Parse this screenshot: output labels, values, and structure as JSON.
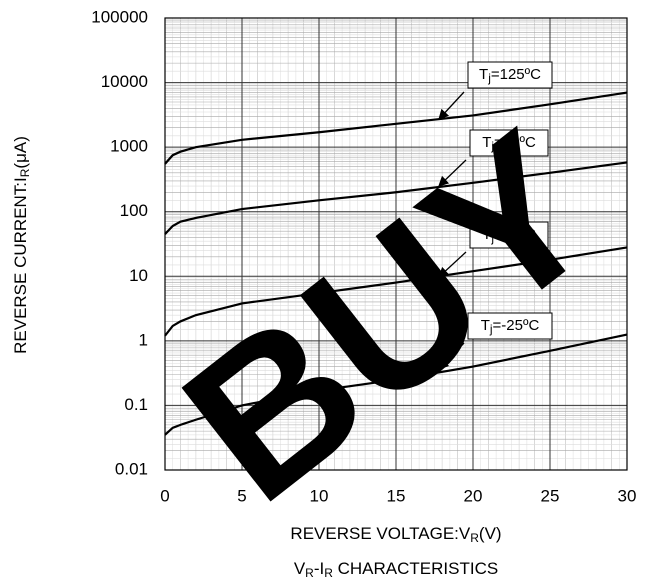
{
  "chart_data": {
    "type": "line",
    "title": [
      "V",
      "R",
      "-I",
      "R",
      " CHARACTERISTICS"
    ],
    "x_label": [
      "REVERSE VOLTAGE:V",
      "R",
      "(V)"
    ],
    "y_label": [
      "REVERSE CURRENT:I",
      "R",
      "(μA)"
    ],
    "watermark": "BUY",
    "x": [
      0,
      0.5,
      1,
      2,
      5,
      10,
      15,
      20,
      25,
      30
    ],
    "series": [
      {
        "name": [
          "T",
          "j",
          "=125ºC"
        ],
        "color": "#000000",
        "values": [
          550,
          750,
          850,
          1000,
          1300,
          1700,
          2300,
          3100,
          4600,
          7000
        ]
      },
      {
        "name": [
          "T",
          "j",
          "=75ºC"
        ],
        "color": "#000000",
        "values": [
          45,
          60,
          70,
          80,
          110,
          150,
          200,
          280,
          400,
          580
        ]
      },
      {
        "name": [
          "T",
          "j",
          "=25ºC"
        ],
        "color": "#000000",
        "values": [
          1.2,
          1.7,
          2.0,
          2.5,
          3.8,
          5.5,
          8,
          12,
          18,
          28
        ]
      },
      {
        "name": [
          "T",
          "j",
          "=-25ºC"
        ],
        "color": "#000000",
        "values": [
          0.035,
          0.045,
          0.05,
          0.06,
          0.1,
          0.17,
          0.25,
          0.4,
          0.7,
          1.25
        ]
      }
    ],
    "xlim": [
      0,
      30
    ],
    "xticks": [
      0,
      5,
      10,
      15,
      20,
      25,
      30
    ],
    "ylim": [
      0.01,
      100000
    ],
    "yticks": [
      0.01,
      0.1,
      1,
      10,
      100,
      1000,
      10000,
      100000
    ],
    "log_y": true,
    "grid": true
  }
}
